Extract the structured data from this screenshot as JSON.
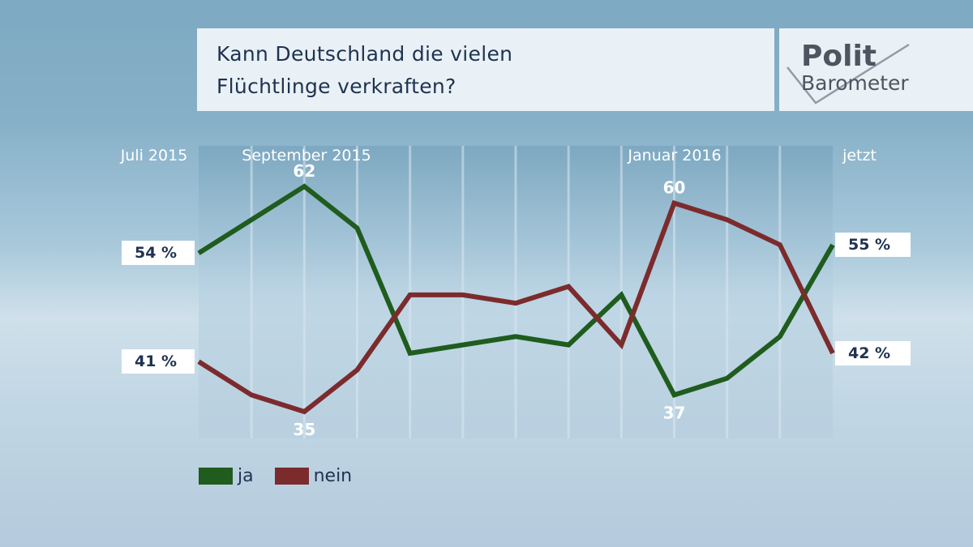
{
  "title": {
    "line1": "Kann Deutschland die vielen",
    "line2": "Flüchtlinge verkraften?"
  },
  "logo": {
    "line1": "Polit",
    "line2": "Barometer"
  },
  "colors": {
    "ja": "#1f5c1e",
    "nein": "#7c2b2d",
    "text": "#1f3350"
  },
  "chart_data": {
    "type": "line",
    "title": "Kann Deutschland die vielen Flüchtlinge verkraften?",
    "x_labels": [
      "Juli 2015",
      "September 2015",
      "Januar 2016",
      "jetzt"
    ],
    "x_label_positions": [
      0,
      2,
      9,
      12
    ],
    "ylim": [
      30,
      65
    ],
    "series": [
      {
        "name": "ja",
        "values": [
          54,
          58,
          62,
          57,
          42,
          43,
          44,
          43,
          49,
          37,
          39,
          44,
          55
        ]
      },
      {
        "name": "nein",
        "values": [
          41,
          37,
          35,
          40,
          49,
          49,
          48,
          50,
          43,
          60,
          58,
          55,
          42
        ]
      }
    ],
    "point_labels": [
      {
        "series": "ja",
        "index": 2,
        "text": "62"
      },
      {
        "series": "nein",
        "index": 2,
        "text": "35"
      },
      {
        "series": "nein",
        "index": 9,
        "text": "60"
      },
      {
        "series": "ja",
        "index": 9,
        "text": "37"
      }
    ],
    "start_labels": {
      "ja": "54 %",
      "nein": "41 %"
    },
    "end_labels": {
      "ja": "55 %",
      "nein": "42 %"
    }
  },
  "legend": [
    {
      "name": "ja",
      "label": "ja"
    },
    {
      "name": "nein",
      "label": "nein"
    }
  ]
}
